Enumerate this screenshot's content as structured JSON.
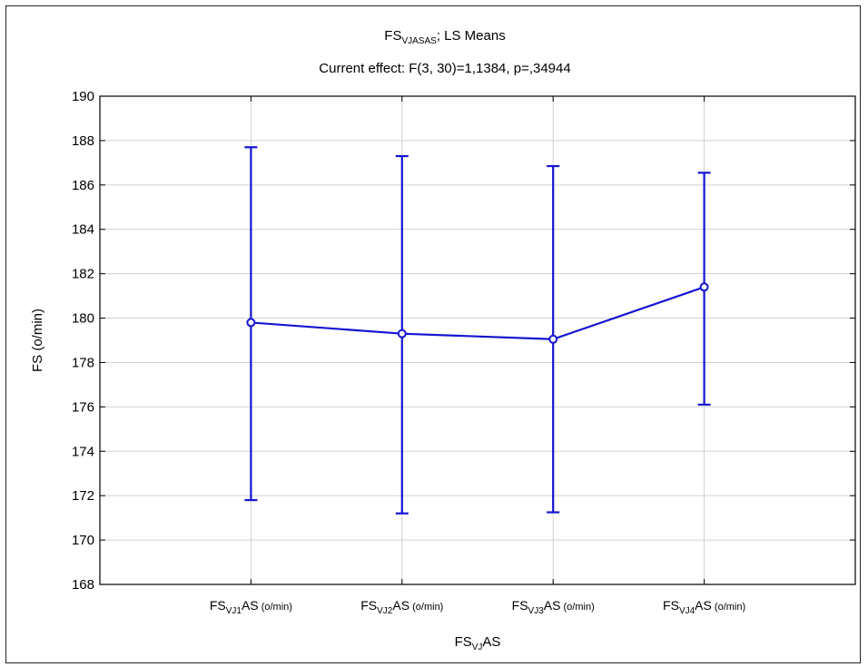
{
  "chart_data": {
    "type": "line",
    "title": {
      "base": "FS",
      "sub": "VJASAS",
      "rest": "; LS Means"
    },
    "subtitle": "Current effect: F(3, 30)=1,1384, p=,34944",
    "ylabel": "FS (o/min)",
    "xlabel": {
      "base": "FS",
      "sub": "VJ",
      "rest": "AS"
    },
    "ylim": [
      168,
      190
    ],
    "yticks": [
      "168",
      "170",
      "172",
      "174",
      "176",
      "178",
      "180",
      "182",
      "184",
      "186",
      "188",
      "190"
    ],
    "grid": true,
    "categories": [
      {
        "base": "FS",
        "sub": "VJ1",
        "mid": "AS",
        "unit": " (o/min)"
      },
      {
        "base": "FS",
        "sub": "VJ2",
        "mid": "AS",
        "unit": " (o/min)"
      },
      {
        "base": "FS",
        "sub": "VJ3",
        "mid": "AS",
        "unit": " (o/min)"
      },
      {
        "base": "FS",
        "sub": "VJ4",
        "mid": "AS",
        "unit": " (o/min)"
      }
    ],
    "series": [
      {
        "values": [
          179.8,
          179.3,
          179.05,
          181.4
        ],
        "lower": [
          171.8,
          171.2,
          171.25,
          176.1
        ],
        "upper": [
          187.7,
          187.3,
          186.85,
          186.55
        ]
      }
    ],
    "colors": {
      "series": "#1414d2",
      "grid": "#d0d0d0",
      "axis": "#000000"
    }
  }
}
